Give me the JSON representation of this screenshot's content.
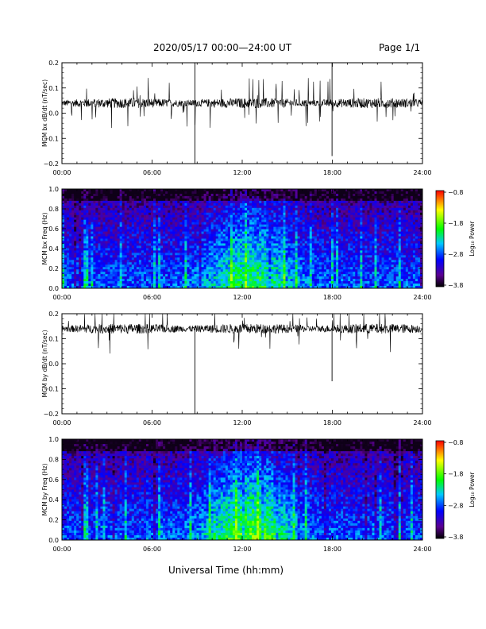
{
  "header": {
    "title": "2020/05/17  00:00—24:00 UT",
    "page": "Page 1/1"
  },
  "xaxis": {
    "label": "Universal Time (hh:mm)",
    "ticks": [
      "00:00",
      "06:00",
      "12:00",
      "18:00",
      "24:00"
    ]
  },
  "chart_data": [
    {
      "type": "line",
      "ylabel": "MCM bx dB/dt (nT/sec)",
      "xlim": [
        0,
        24
      ],
      "ylim": [
        -0.2,
        0.2
      ],
      "yticks": [
        "0.2",
        "0.1",
        "0.0",
        "−0.1",
        "−0.2"
      ],
      "baseline": 0.04,
      "spikes": [
        {
          "t": 8.85,
          "v": -0.2
        },
        {
          "t": 8.85,
          "v": 0.2
        },
        {
          "t": 17.98,
          "v": -0.17
        },
        {
          "t": 17.98,
          "v": 0.2
        }
      ]
    },
    {
      "type": "heatmap",
      "ylabel": "MCM bx Freq (Hz)",
      "xlim": [
        0,
        24
      ],
      "ylim": [
        0,
        1
      ],
      "yticks": [
        "1.0",
        "0.8",
        "0.6",
        "0.4",
        "0.2",
        "0.0"
      ],
      "colorbar": {
        "label": "Log₁₀ Power",
        "ticks": [
          "−0.8",
          "−1.8",
          "−2.8",
          "−3.8"
        ],
        "range": [
          -3.8,
          -0.8
        ]
      }
    },
    {
      "type": "line",
      "ylabel": "MCM by dB/dt (nT/sec)",
      "xlim": [
        0,
        24
      ],
      "ylim": [
        -0.2,
        0.2
      ],
      "yticks": [
        "0.2",
        "0.1",
        "0.0",
        "−0.1",
        "−0.2"
      ],
      "baseline": 0.14,
      "spikes": [
        {
          "t": 8.85,
          "v": -0.2
        },
        {
          "t": 17.98,
          "v": -0.07
        }
      ]
    },
    {
      "type": "heatmap",
      "ylabel": "MCM by Freq (Hz)",
      "xlim": [
        0,
        24
      ],
      "ylim": [
        0,
        1
      ],
      "yticks": [
        "1.0",
        "0.8",
        "0.6",
        "0.4",
        "0.2",
        "0.0"
      ],
      "colorbar": {
        "label": "Log₁₀ Power",
        "ticks": [
          "−0.8",
          "−1.8",
          "−2.8",
          "−3.8"
        ],
        "range": [
          -3.8,
          -0.8
        ]
      }
    }
  ]
}
